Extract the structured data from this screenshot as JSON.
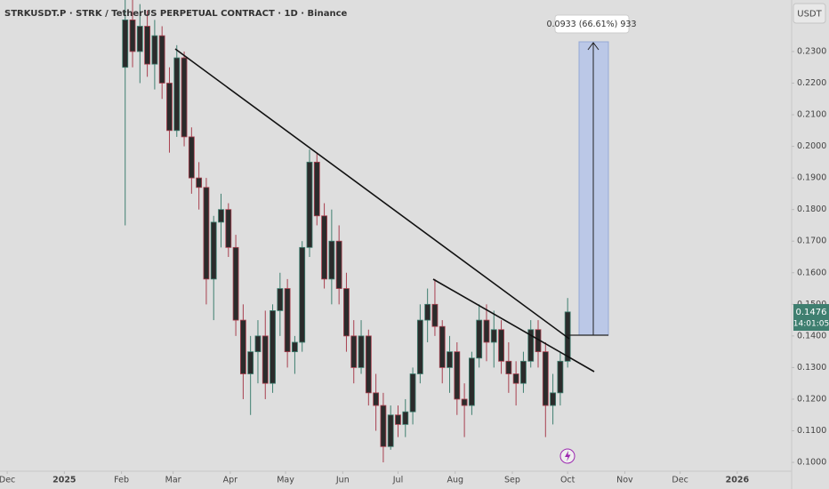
{
  "chart_data": {
    "type": "candlestick",
    "title": "STRKUSDT.P · STRK / TetherUS PERPETUAL CONTRACT · 1D · Binance",
    "currency": "USDT",
    "measure_label": "0.0933 (66.61%) 933",
    "price_label": "0.1476",
    "countdown": "14:01:05",
    "up_color": "#3f7f70",
    "down_color": "#a8404f",
    "x": [
      64,
      68,
      72,
      76,
      80,
      84,
      88,
      92,
      96,
      100,
      104,
      108,
      112,
      116,
      120,
      124,
      128,
      132,
      136,
      140,
      144,
      148,
      152,
      156,
      160,
      164,
      168,
      172,
      176,
      180,
      184,
      188,
      192,
      196,
      200,
      204,
      208,
      212,
      216,
      220,
      224,
      228,
      232,
      236,
      240,
      244,
      248,
      252,
      256,
      260,
      264,
      268,
      272,
      276,
      280,
      284,
      288,
      292,
      296,
      300,
      304
    ],
    "open": [
      0.225,
      0.24,
      0.23,
      0.238,
      0.226,
      0.235,
      0.22,
      0.205,
      0.228,
      0.203,
      0.19,
      0.187,
      0.158,
      0.176,
      0.18,
      0.168,
      0.145,
      0.128,
      0.135,
      0.14,
      0.125,
      0.148,
      0.155,
      0.135,
      0.138,
      0.168,
      0.195,
      0.178,
      0.158,
      0.17,
      0.155,
      0.14,
      0.13,
      0.14,
      0.122,
      0.118,
      0.105,
      0.115,
      0.112,
      0.116,
      0.128,
      0.145,
      0.15,
      0.143,
      0.13,
      0.135,
      0.12,
      0.118,
      0.133,
      0.145,
      0.138,
      0.142,
      0.132,
      0.128,
      0.125,
      0.132,
      0.142,
      0.135,
      0.118,
      0.122,
      0.132
    ],
    "high": [
      0.247,
      0.247,
      0.245,
      0.243,
      0.24,
      0.238,
      0.225,
      0.232,
      0.23,
      0.206,
      0.195,
      0.19,
      0.178,
      0.185,
      0.182,
      0.172,
      0.15,
      0.14,
      0.145,
      0.148,
      0.15,
      0.16,
      0.158,
      0.14,
      0.17,
      0.199,
      0.198,
      0.182,
      0.18,
      0.175,
      0.16,
      0.145,
      0.145,
      0.142,
      0.128,
      0.122,
      0.118,
      0.118,
      0.12,
      0.13,
      0.15,
      0.155,
      0.158,
      0.145,
      0.14,
      0.138,
      0.125,
      0.135,
      0.15,
      0.15,
      0.148,
      0.145,
      0.138,
      0.132,
      0.135,
      0.145,
      0.145,
      0.138,
      0.128,
      0.135,
      0.152
    ],
    "low": [
      0.175,
      0.225,
      0.22,
      0.222,
      0.218,
      0.215,
      0.198,
      0.203,
      0.2,
      0.185,
      0.18,
      0.15,
      0.145,
      0.168,
      0.165,
      0.14,
      0.12,
      0.115,
      0.125,
      0.12,
      0.122,
      0.14,
      0.13,
      0.128,
      0.135,
      0.165,
      0.175,
      0.155,
      0.15,
      0.15,
      0.135,
      0.125,
      0.128,
      0.118,
      0.11,
      0.1,
      0.104,
      0.108,
      0.108,
      0.112,
      0.125,
      0.138,
      0.14,
      0.125,
      0.122,
      0.115,
      0.108,
      0.115,
      0.13,
      0.132,
      0.13,
      0.128,
      0.122,
      0.118,
      0.122,
      0.13,
      0.13,
      0.108,
      0.112,
      0.118,
      0.13
    ],
    "close": [
      0.24,
      0.23,
      0.238,
      0.226,
      0.235,
      0.22,
      0.205,
      0.228,
      0.203,
      0.19,
      0.187,
      0.158,
      0.176,
      0.18,
      0.168,
      0.145,
      0.128,
      0.135,
      0.14,
      0.125,
      0.148,
      0.155,
      0.135,
      0.138,
      0.168,
      0.195,
      0.178,
      0.158,
      0.17,
      0.155,
      0.14,
      0.13,
      0.14,
      0.122,
      0.118,
      0.105,
      0.115,
      0.112,
      0.116,
      0.128,
      0.145,
      0.15,
      0.143,
      0.13,
      0.135,
      0.12,
      0.118,
      0.133,
      0.145,
      0.138,
      0.142,
      0.132,
      0.128,
      0.125,
      0.132,
      0.142,
      0.135,
      0.118,
      0.122,
      0.132,
      0.1476
    ],
    "xlim": [
      -3.9,
      425.5
    ],
    "xticks": [
      {
        "value": 0,
        "label": "Dec"
      },
      {
        "value": 31,
        "label": "2025"
      },
      {
        "value": 62,
        "label": "Feb"
      },
      {
        "value": 90,
        "label": "Mar"
      },
      {
        "value": 121,
        "label": "Apr"
      },
      {
        "value": 151,
        "label": "May"
      },
      {
        "value": 182,
        "label": "Jun"
      },
      {
        "value": 212,
        "label": "Jul"
      },
      {
        "value": 243,
        "label": "Aug"
      },
      {
        "value": 274,
        "label": "Sep"
      },
      {
        "value": 304,
        "label": "Oct"
      },
      {
        "value": 335,
        "label": "Nov"
      },
      {
        "value": 365,
        "label": "Dec"
      },
      {
        "value": 396,
        "label": "2026"
      }
    ],
    "ylim": [
      0.0972,
      0.2463
    ],
    "yticks": [
      {
        "value": 0.1,
        "label": "0.1000"
      },
      {
        "value": 0.11,
        "label": "0.1100"
      },
      {
        "value": 0.12,
        "label": "0.1200"
      },
      {
        "value": 0.13,
        "label": "0.1300"
      },
      {
        "value": 0.14,
        "label": "0.1400"
      },
      {
        "value": 0.15,
        "label": "0.1500"
      },
      {
        "value": 0.16,
        "label": "0.1600"
      },
      {
        "value": 0.17,
        "label": "0.1700"
      },
      {
        "value": 0.18,
        "label": "0.1800"
      },
      {
        "value": 0.19,
        "label": "0.1900"
      },
      {
        "value": 0.2,
        "label": "0.2000"
      },
      {
        "value": 0.21,
        "label": "0.2100"
      },
      {
        "value": 0.22,
        "label": "0.2200"
      },
      {
        "value": 0.23,
        "label": "0.2300"
      }
    ]
  }
}
